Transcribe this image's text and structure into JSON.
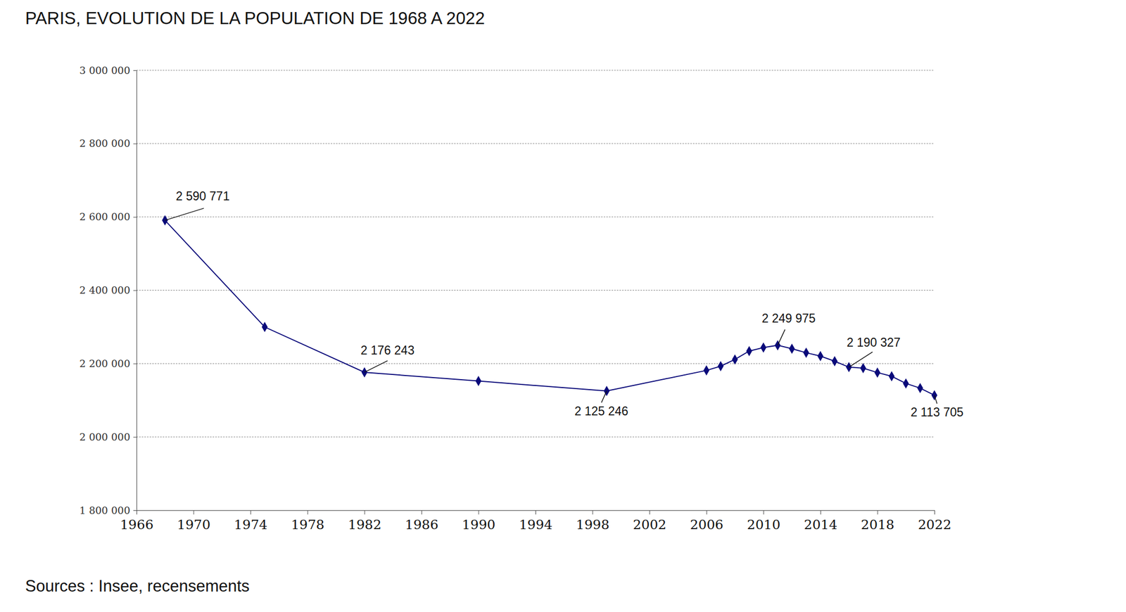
{
  "chart_data": {
    "type": "line",
    "title": "PARIS, EVOLUTION DE LA POPULATION DE 1968 A 2022",
    "source": "Sources : Insee, recensements",
    "x": [
      1968,
      1975,
      1982,
      1990,
      1999,
      2006,
      2007,
      2008,
      2009,
      2010,
      2011,
      2012,
      2013,
      2014,
      2015,
      2016,
      2017,
      2018,
      2019,
      2020,
      2021,
      2022
    ],
    "values": [
      2590771,
      2299830,
      2176243,
      2152423,
      2125246,
      2181371,
      2193030,
      2211297,
      2234105,
      2243833,
      2249975,
      2240621,
      2229621,
      2220445,
      2206488,
      2190327,
      2187526,
      2175601,
      2165423,
      2145906,
      2133111,
      2113705
    ],
    "color": "#0a0a7a",
    "marker": "diamond",
    "line_style": "solid",
    "grid": true,
    "xlim": [
      1966,
      2022
    ],
    "xticks": [
      1966,
      1970,
      1974,
      1978,
      1982,
      1986,
      1990,
      1994,
      1998,
      2002,
      2006,
      2010,
      2014,
      2018,
      2022
    ],
    "ylim": [
      1800000,
      3000000
    ],
    "yticks": [
      {
        "value": 1800000,
        "label": "1 800 000"
      },
      {
        "value": 2000000,
        "label": "2 000 000"
      },
      {
        "value": 2200000,
        "label": "2 200 000"
      },
      {
        "value": 2400000,
        "label": "2 400 000"
      },
      {
        "value": 2600000,
        "label": "2 600 000"
      },
      {
        "value": 2800000,
        "label": "2 800 000"
      },
      {
        "value": 3000000,
        "label": "3 000 000"
      }
    ],
    "annotations": [
      {
        "x": 1968,
        "value": 2590771,
        "label": "2 590 771"
      },
      {
        "x": 1982,
        "value": 2176243,
        "label": "2 176 243"
      },
      {
        "x": 1999,
        "value": 2125246,
        "label": "2 125 246"
      },
      {
        "x": 2011,
        "value": 2249975,
        "label": "2 249 975"
      },
      {
        "x": 2016,
        "value": 2190327,
        "label": "2 190 327"
      },
      {
        "x": 2022,
        "value": 2113705,
        "label": "2 113 705"
      }
    ]
  }
}
